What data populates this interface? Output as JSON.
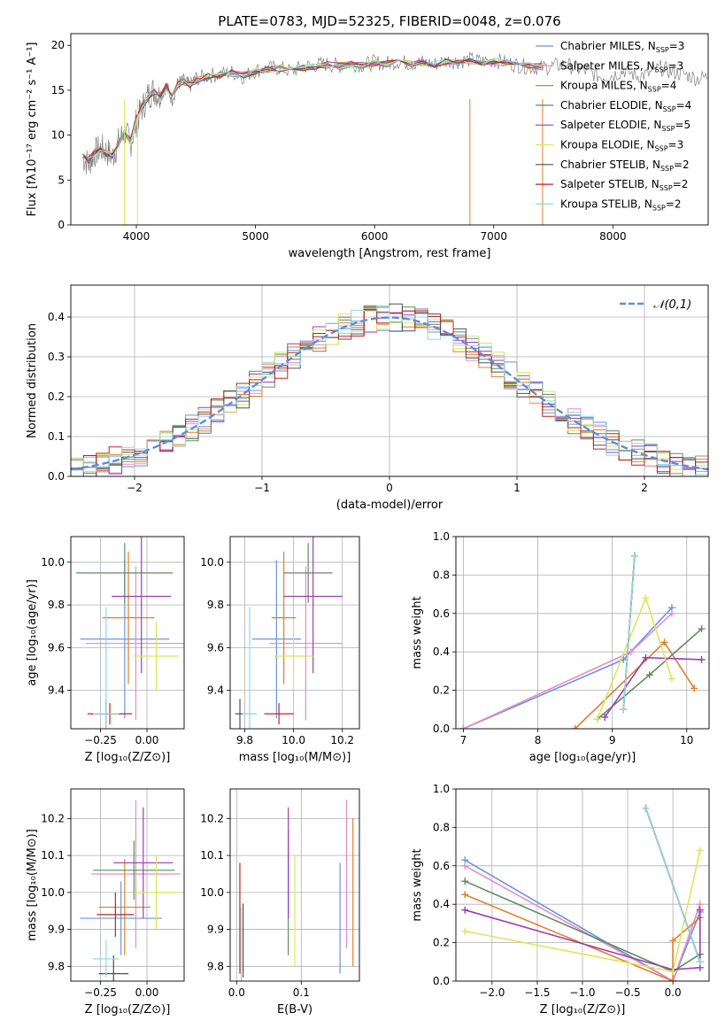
{
  "figure": {
    "title": "PLATE=0783, MJD=52325, FIBERID=0048, z=0.076"
  },
  "colors": [
    "#6b95e0",
    "#e88cc3",
    "#e07f2e",
    "#5f8c5f",
    "#9b3fb0",
    "#d8e85a",
    "#505050",
    "#c0231f",
    "#8fd9df"
  ],
  "chart_data": [
    {
      "id": "spectrum",
      "type": "line",
      "title": "PLATE=0783, MJD=52325, FIBERID=0048, z=0.076",
      "xlabel": "wavelength [Angstrom, rest frame]",
      "ylabel": "Flux [fλ10⁻¹⁷ erg cm⁻² s⁻¹ A⁻¹]",
      "xlim": [
        3450,
        8800
      ],
      "ylim": [
        0,
        21.3
      ],
      "xticks": [
        4000,
        5000,
        6000,
        7000,
        8000
      ],
      "yticks": [
        0,
        5,
        10,
        15,
        20
      ],
      "grid": false,
      "legend_position": "right",
      "data_spectrum": {
        "x": [
          3550,
          3600,
          3650,
          3700,
          3750,
          3800,
          3850,
          3900,
          3950,
          4000,
          4050,
          4100,
          4150,
          4200,
          4250,
          4300,
          4350,
          4400,
          4450,
          4500,
          4600,
          4700,
          4800,
          4900,
          5000,
          5100,
          5200,
          5300,
          5400,
          5500,
          5600,
          5700,
          5800,
          5900,
          6000,
          6100,
          6200,
          6300,
          6400,
          6500,
          6600,
          6700,
          6800,
          6900,
          7000,
          7100,
          7200,
          7300,
          7400,
          7500,
          7600,
          7700,
          7800,
          7900,
          8000,
          8100,
          8200,
          8300,
          8400,
          8500,
          8600,
          8700,
          8800
        ],
        "y": [
          7.5,
          6.8,
          8.0,
          8.5,
          8.2,
          7.6,
          9.2,
          10.5,
          9.0,
          11.5,
          13.0,
          14.5,
          15.0,
          14.2,
          15.5,
          14.0,
          15.8,
          16.0,
          15.5,
          16.3,
          16.6,
          16.8,
          17.0,
          16.5,
          17.2,
          17.4,
          17.5,
          17.1,
          17.6,
          17.8,
          17.9,
          17.7,
          18.0,
          17.8,
          18.1,
          18.0,
          18.2,
          18.0,
          18.1,
          17.9,
          18.3,
          18.2,
          18.4,
          18.2,
          18.3,
          18.1,
          17.8,
          17.6,
          17.5,
          17.7,
          17.9,
          17.4,
          17.0,
          16.5,
          16.7,
          17.2,
          16.6,
          16.8,
          17.5,
          17.0,
          16.8,
          16.3,
          16.5
        ]
      },
      "models_x": [
        3550,
        3600,
        3650,
        3700,
        3750,
        3800,
        3850,
        3900,
        3950,
        4000,
        4050,
        4100,
        4150,
        4200,
        4250,
        4300,
        4350,
        4400,
        4450,
        4500,
        4600,
        4700,
        4800,
        4900,
        5000,
        5100,
        5200,
        5300,
        5400,
        5500,
        5600,
        5700,
        5800,
        5900,
        6000,
        6100,
        6200,
        6300,
        6400,
        6500,
        6600,
        6700,
        6800,
        6900,
        7000,
        7100,
        7200,
        7300,
        7400
      ],
      "models_base": [
        7.7,
        7.2,
        8.1,
        8.3,
        8.0,
        7.8,
        9.0,
        10.2,
        9.3,
        11.8,
        13.2,
        14.3,
        14.8,
        14.4,
        15.3,
        14.5,
        15.7,
        15.9,
        15.6,
        16.1,
        16.5,
        16.7,
        16.9,
        16.7,
        17.1,
        17.3,
        17.4,
        17.2,
        17.5,
        17.7,
        17.8,
        17.7,
        17.9,
        17.8,
        18.0,
        17.9,
        18.1,
        18.0,
        18.0,
        17.9,
        18.2,
        18.1,
        18.3,
        18.1,
        18.2,
        18.0,
        17.8,
        17.7,
        17.6
      ],
      "legend": [
        "Chabrier MILES, N_SSP=3",
        "Salpeter MILES, N_SSP=3",
        "Kroupa MILES, N_SSP=4",
        "Chabrier ELODIE, N_SSP=4",
        "Salpeter ELODIE, N_SSP=5",
        "Kroupa ELODIE, N_SSP=3",
        "Chabrier STELIB, N_SSP=2",
        "Salpeter STELIB, N_SSP=2",
        "Kroupa STELIB, N_SSP=2"
      ]
    },
    {
      "id": "residual-hist",
      "type": "line",
      "xlabel": "(data-model)/error",
      "ylabel": "Normed distribution",
      "xlim": [
        -2.5,
        2.5
      ],
      "ylim": [
        0,
        0.48
      ],
      "xticks": [
        -2,
        -1,
        0,
        1,
        2
      ],
      "yticks": [
        0.0,
        0.1,
        0.2,
        0.3,
        0.4
      ],
      "grid": true,
      "legend_position": "top-right",
      "normal_curve_label": "𝒩(0,1)",
      "bin_width": 0.1
    },
    {
      "id": "age-vs-Z",
      "type": "scatter",
      "xlabel": "Z [log₁₀(Z/Z⊙)]",
      "ylabel": "age  [log₁₀(age/yr)]",
      "xlim": [
        -0.41,
        0.2
      ],
      "ylim": [
        9.22,
        10.12
      ],
      "xticks": [
        -0.25,
        0.0
      ],
      "yticks": [
        9.4,
        9.6,
        9.8,
        10.0
      ],
      "grid": true,
      "points": [
        {
          "x": -0.12,
          "y": 9.64,
          "xerr": 0.24,
          "yerr": 0.37
        },
        {
          "x": -0.06,
          "y": 9.62,
          "xerr": 0.27,
          "yerr": 0.36
        },
        {
          "x": -0.1,
          "y": 9.74,
          "xerr": 0.14,
          "yerr": 0.31
        },
        {
          "x": -0.12,
          "y": 9.95,
          "xerr": 0.26,
          "yerr": 0.14
        },
        {
          "x": -0.03,
          "y": 9.84,
          "xerr": 0.16,
          "yerr": 0.36
        },
        {
          "x": 0.05,
          "y": 9.56,
          "xerr": 0.12,
          "yerr": 0.16
        },
        {
          "x": -0.22,
          "y": 9.29,
          "xerr": 0.08,
          "yerr": 0.07
        },
        {
          "x": -0.2,
          "y": 9.29,
          "xerr": 0.12,
          "yerr": 0.05
        },
        {
          "x": -0.22,
          "y": 9.29,
          "xerr": 0.07,
          "yerr": 0.5
        }
      ]
    },
    {
      "id": "age-vs-mass",
      "type": "scatter",
      "xlabel": "mass [log₁₀(M/M⊙)]",
      "ylabel": "",
      "xlim": [
        9.74,
        10.27
      ],
      "ylim": [
        9.22,
        10.12
      ],
      "xticks": [
        9.8,
        10.0,
        10.2
      ],
      "yticks": [
        9.4,
        9.6,
        9.8,
        10.0
      ],
      "grid": true,
      "points": [
        {
          "x": 9.93,
          "y": 9.64,
          "xerr": 0.1,
          "yerr": 0.37
        },
        {
          "x": 10.05,
          "y": 9.62,
          "xerr": 0.15,
          "yerr": 0.36
        },
        {
          "x": 9.96,
          "y": 9.74,
          "xerr": 0.05,
          "yerr": 0.31
        },
        {
          "x": 10.06,
          "y": 9.95,
          "xerr": 0.1,
          "yerr": 0.14
        },
        {
          "x": 10.08,
          "y": 9.84,
          "xerr": 0.12,
          "yerr": 0.36
        },
        {
          "x": 10.0,
          "y": 9.56,
          "xerr": 0.08,
          "yerr": 0.16
        },
        {
          "x": 9.78,
          "y": 9.29,
          "xerr": 0.02,
          "yerr": 0.07
        },
        {
          "x": 9.94,
          "y": 9.29,
          "xerr": 0.06,
          "yerr": 0.05
        },
        {
          "x": 9.82,
          "y": 9.29,
          "xerr": 0.03,
          "yerr": 0.5
        }
      ]
    },
    {
      "id": "weight-vs-age",
      "type": "line",
      "xlabel": "age  [log₁₀(age/yr)]",
      "ylabel": "mass weight",
      "xlim": [
        6.9,
        10.3
      ],
      "ylim": [
        0,
        1.0
      ],
      "xticks": [
        7,
        8,
        9,
        10
      ],
      "yticks": [
        0.0,
        0.2,
        0.4,
        0.6,
        0.8,
        1.0
      ],
      "grid": true,
      "series": [
        {
          "x": [
            7.0,
            9.15,
            9.8
          ],
          "y": [
            0.0,
            0.36,
            0.63
          ]
        },
        {
          "x": [
            7.0,
            9.25,
            9.8
          ],
          "y": [
            0.0,
            0.4,
            0.6
          ]
        },
        {
          "x": [
            8.5,
            9.7,
            10.1
          ],
          "y": [
            0.0,
            0.45,
            0.21
          ]
        },
        {
          "x": [
            8.8,
            9.5,
            10.2
          ],
          "y": [
            0.05,
            0.28,
            0.52
          ]
        },
        {
          "x": [
            8.9,
            9.45,
            10.2
          ],
          "y": [
            0.06,
            0.37,
            0.36
          ]
        },
        {
          "x": [
            8.8,
            9.45,
            9.8
          ],
          "y": [
            0.05,
            0.68,
            0.26
          ]
        },
        {
          "x": [
            9.15,
            9.3
          ],
          "y": [
            0.1,
            0.9
          ]
        },
        {
          "x": [
            9.15,
            9.3
          ],
          "y": [
            0.1,
            0.9
          ]
        },
        {
          "x": [
            9.15,
            9.3
          ],
          "y": [
            0.1,
            0.9
          ]
        }
      ]
    },
    {
      "id": "mass-vs-Z",
      "type": "scatter",
      "xlabel": "Z [log₁₀(Z/Z⊙)]",
      "ylabel": "mass [log₁₀(M/M⊙)]",
      "xlim": [
        -0.41,
        0.2
      ],
      "ylim": [
        9.76,
        10.28
      ],
      "xticks": [
        -0.25,
        0.0
      ],
      "yticks": [
        9.8,
        9.9,
        10.0,
        10.1,
        10.2
      ],
      "grid": true,
      "points": [
        {
          "x": -0.14,
          "y": 9.93,
          "xerr": 0.22,
          "yerr": 0.1
        },
        {
          "x": -0.06,
          "y": 10.05,
          "xerr": 0.24,
          "yerr": 0.2
        },
        {
          "x": -0.12,
          "y": 9.96,
          "xerr": 0.14,
          "yerr": 0.13
        },
        {
          "x": -0.07,
          "y": 10.06,
          "xerr": 0.22,
          "yerr": 0.08
        },
        {
          "x": -0.02,
          "y": 10.08,
          "xerr": 0.16,
          "yerr": 0.15
        },
        {
          "x": 0.05,
          "y": 10.0,
          "xerr": 0.12,
          "yerr": 0.1
        },
        {
          "x": -0.18,
          "y": 9.78,
          "xerr": 0.08,
          "yerr": 0.05
        },
        {
          "x": -0.17,
          "y": 9.94,
          "xerr": 0.1,
          "yerr": 0.06
        },
        {
          "x": -0.22,
          "y": 9.82,
          "xerr": 0.07,
          "yerr": 0.05
        }
      ]
    },
    {
      "id": "mass-vs-EBV",
      "type": "scatter",
      "xlabel": "E(B-V)",
      "ylabel": "",
      "xlim": [
        -0.01,
        0.19
      ],
      "ylim": [
        9.76,
        10.28
      ],
      "xticks": [
        0.0,
        0.1
      ],
      "yticks": [
        9.8,
        9.9,
        10.0,
        10.1,
        10.2
      ],
      "grid": true,
      "points": [
        {
          "x": 0.16,
          "y": 9.93,
          "xerr": 0,
          "yerr": 0.15
        },
        {
          "x": 0.17,
          "y": 10.05,
          "xerr": 0,
          "yerr": 0.2
        },
        {
          "x": 0.18,
          "y": 10.0,
          "xerr": 0,
          "yerr": 0.2
        },
        {
          "x": 0.08,
          "y": 10.0,
          "xerr": 0,
          "yerr": 0.17
        },
        {
          "x": 0.08,
          "y": 10.08,
          "xerr": 0,
          "yerr": 0.15
        },
        {
          "x": 0.09,
          "y": 9.95,
          "xerr": 0,
          "yerr": 0.15
        },
        {
          "x": 0.01,
          "y": 9.87,
          "xerr": 0,
          "yerr": 0.1
        },
        {
          "x": 0.005,
          "y": 9.93,
          "xerr": 0,
          "yerr": 0.15
        },
        {
          "x": 0.007,
          "y": 9.86,
          "xerr": 0,
          "yerr": 0.1
        }
      ]
    },
    {
      "id": "weight-vs-Z",
      "type": "line",
      "xlabel": "Z [log₁₀(Z/Z⊙)]",
      "ylabel": "mass weight",
      "xlim": [
        -2.4,
        0.4
      ],
      "ylim": [
        0,
        1.0
      ],
      "xticks": [
        -2.0,
        -1.5,
        -1.0,
        -0.5,
        0.0
      ],
      "yticks": [
        0.0,
        0.2,
        0.4,
        0.6,
        0.8,
        1.0
      ],
      "grid": true,
      "series": [
        {
          "x": [
            -2.3,
            0.0,
            0.3
          ],
          "y": [
            0.63,
            0.0,
            0.36
          ]
        },
        {
          "x": [
            -2.3,
            0.0,
            0.3
          ],
          "y": [
            0.6,
            0.0,
            0.4
          ]
        },
        {
          "x": [
            -2.3,
            0.0,
            0.0,
            0.3
          ],
          "y": [
            0.45,
            0.0,
            0.21,
            0.33
          ]
        },
        {
          "x": [
            -2.3,
            0.0,
            0.3
          ],
          "y": [
            0.52,
            0.05,
            0.14
          ]
        },
        {
          "x": [
            -2.3,
            0.0,
            0.3,
            0.3
          ],
          "y": [
            0.37,
            0.06,
            0.07,
            0.37
          ]
        },
        {
          "x": [
            -2.3,
            0.0,
            0.3
          ],
          "y": [
            0.26,
            0.05,
            0.68
          ]
        },
        {
          "x": [
            -0.3,
            0.3
          ],
          "y": [
            0.9,
            0.1
          ]
        },
        {
          "x": [
            -0.3,
            0.3
          ],
          "y": [
            0.9,
            0.1
          ]
        },
        {
          "x": [
            -0.3,
            0.3
          ],
          "y": [
            0.9,
            0.1
          ]
        }
      ]
    }
  ]
}
